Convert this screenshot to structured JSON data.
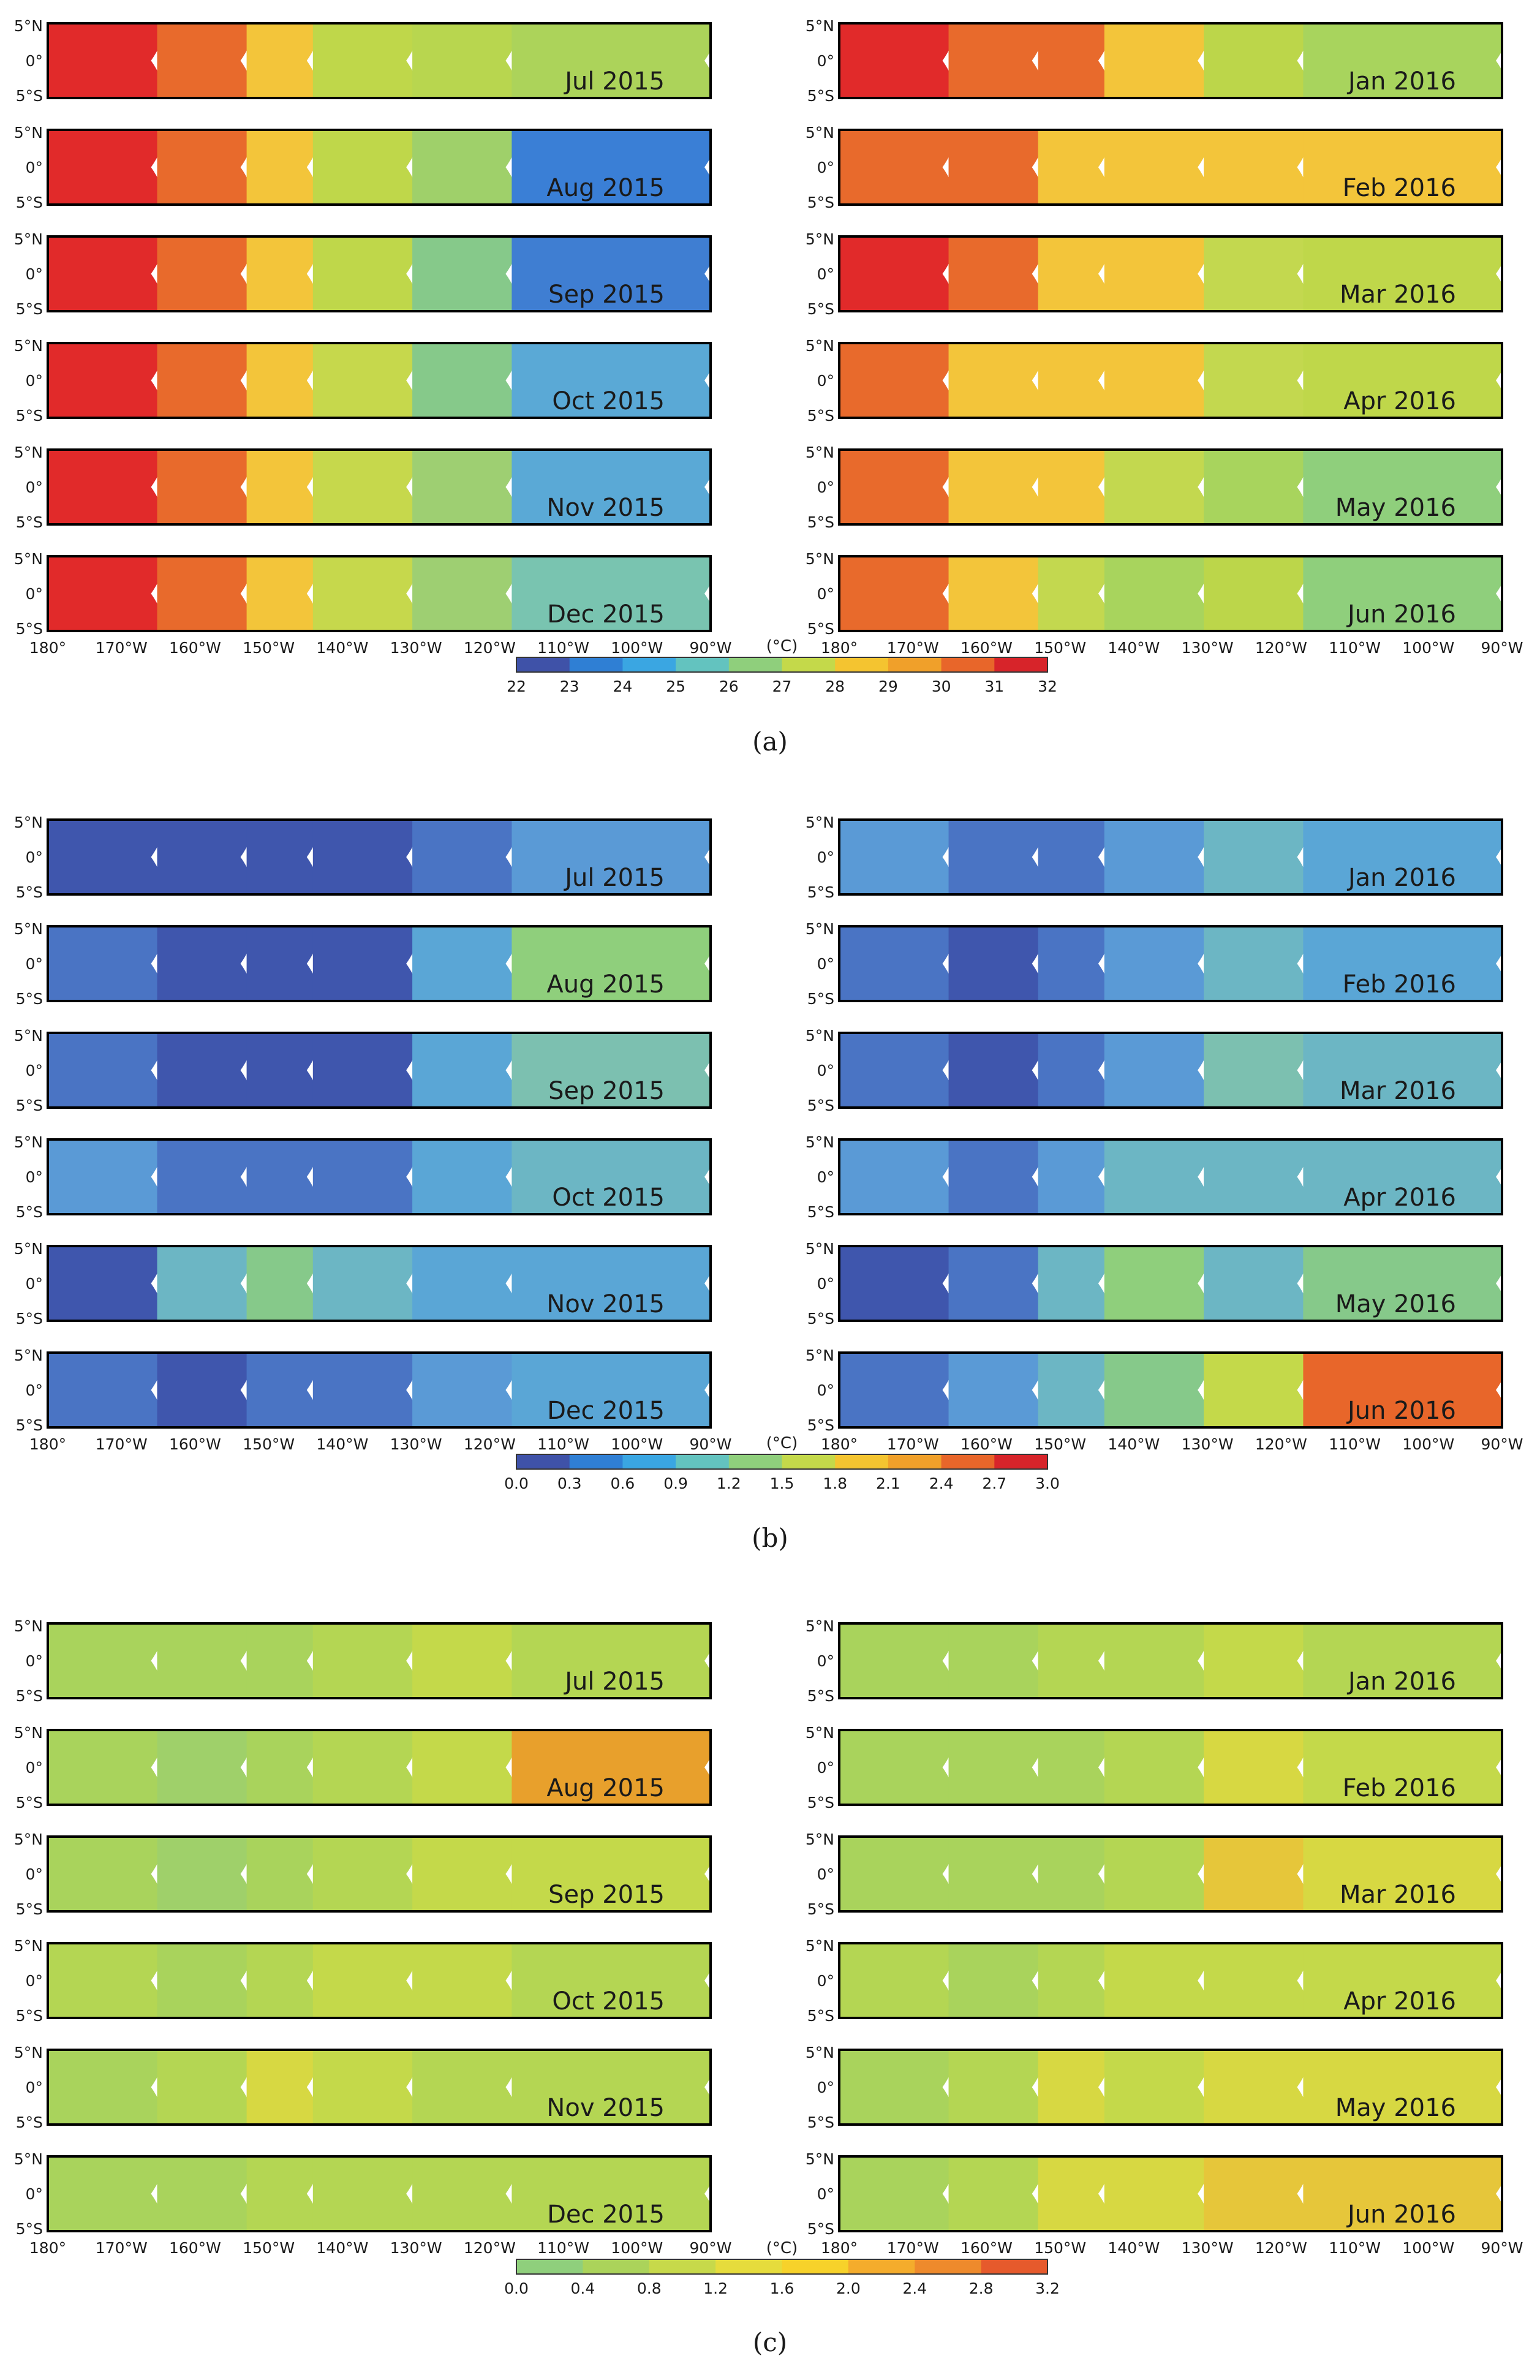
{
  "lat_ticks": [
    "5°N",
    "0°",
    "5°S"
  ],
  "lon_ticks": [
    "180°",
    "170°W",
    "160°W",
    "150°W",
    "140°W",
    "130°W",
    "120°W",
    "110°W",
    "100°W",
    "90°W"
  ],
  "months_left": [
    "Jul 2015",
    "Aug 2015",
    "Sep 2015",
    "Oct 2015",
    "Nov 2015",
    "Dec 2015"
  ],
  "months_right": [
    "Jan 2016",
    "Feb 2016",
    "Mar 2016",
    "Apr 2016",
    "May 2016",
    "Jun 2016"
  ],
  "unit_label": "(°C)",
  "chart_data": [
    {
      "type": "heatmap",
      "caption": "(a)",
      "colorbar": {
        "ticks": [
          "22",
          "23",
          "24",
          "25",
          "26",
          "27",
          "28",
          "29",
          "30",
          "31",
          "32"
        ],
        "colors": [
          "#3f52a8",
          "#2f7fd4",
          "#3aa6e2",
          "#63c3bf",
          "#8fcf7c",
          "#c4d94a",
          "#f4c430",
          "#f0a02a",
          "#e8662a",
          "#d7242a",
          "#8c1414"
        ]
      },
      "bands": [
        [
          "#e12a2a",
          "#e86a2c",
          "#f3c53a",
          "#bfd74a",
          "#b8d64f",
          "#acd35a"
        ],
        [
          "#e12a2a",
          "#e86a2c",
          "#f3c53a",
          "#bfd74a",
          "#9fd06a",
          "#3a7fd6"
        ],
        [
          "#e12a2a",
          "#e86a2c",
          "#f3c53a",
          "#bfd74a",
          "#86c98a",
          "#3f7ed2"
        ],
        [
          "#e12a2a",
          "#e86a2c",
          "#f3c53a",
          "#c6d84c",
          "#86c98a",
          "#5aa9d6"
        ],
        [
          "#e12a2a",
          "#e86a2c",
          "#f3c53a",
          "#c6d84c",
          "#9ecf72",
          "#5aa9d6"
        ],
        [
          "#e12a2a",
          "#e86a2c",
          "#f3c53a",
          "#c6d84c",
          "#9ecf72",
          "#79c4b0"
        ],
        [
          "#e12a2a",
          "#e86a2c",
          "#e86a2c",
          "#f3c53a",
          "#bcd64a",
          "#a8d45d"
        ],
        [
          "#e86a2c",
          "#e86a2c",
          "#f3c53a",
          "#f3c53a",
          "#f3c53a",
          "#f3c53a"
        ],
        [
          "#e12a2a",
          "#e86a2c",
          "#f3c53a",
          "#f3c53a",
          "#c3d84f",
          "#bfd74a"
        ],
        [
          "#e86a2c",
          "#f3c53a",
          "#f3c53a",
          "#f3c53a",
          "#c3d84f",
          "#bfd74a"
        ],
        [
          "#e86a2c",
          "#f3c53a",
          "#f3c53a",
          "#c3d84f",
          "#a8d45d",
          "#8fcf7c"
        ],
        [
          "#e86a2c",
          "#f3c53a",
          "#c3d84f",
          "#a8d45d",
          "#bcd64a",
          "#8fcf7c"
        ]
      ]
    },
    {
      "type": "heatmap",
      "caption": "(b)",
      "colorbar": {
        "ticks": [
          "0.0",
          "0.3",
          "0.6",
          "0.9",
          "1.2",
          "1.5",
          "1.8",
          "2.1",
          "2.4",
          "2.7",
          "3.0"
        ],
        "colors": [
          "#3f52a8",
          "#2f7fd4",
          "#3aa6e2",
          "#63c3bf",
          "#8fcf7c",
          "#c4d94a",
          "#f4c430",
          "#f0a02a",
          "#e8662a",
          "#d7242a",
          "#8c1414"
        ]
      },
      "bands": [
        [
          "#3f56ad",
          "#3f56ad",
          "#3f56ad",
          "#3f56ad",
          "#4a74c4",
          "#5a9ad6"
        ],
        [
          "#4a74c4",
          "#3f56ad",
          "#3f56ad",
          "#3f56ad",
          "#5aa6d6",
          "#8fcf7c"
        ],
        [
          "#4a74c4",
          "#3f56ad",
          "#3f56ad",
          "#3f56ad",
          "#5aa6d6",
          "#7cc0b0"
        ],
        [
          "#5a9ad6",
          "#4a74c4",
          "#4a74c4",
          "#4a74c4",
          "#5aa6d6",
          "#6cb6c4"
        ],
        [
          "#3f56ad",
          "#6cb6c4",
          "#86c98a",
          "#6cb6c4",
          "#5aa6d6",
          "#5aa6d6"
        ],
        [
          "#4a74c4",
          "#3f56ad",
          "#4a74c4",
          "#4a74c4",
          "#5a9ad6",
          "#5aa6d6"
        ],
        [
          "#5a9ad6",
          "#4a74c4",
          "#4a74c4",
          "#5a9ad6",
          "#6cb6c4",
          "#5aa6d6"
        ],
        [
          "#4a74c4",
          "#3f56ad",
          "#4a74c4",
          "#5a9ad6",
          "#6cb6c4",
          "#5aa6d6"
        ],
        [
          "#4a74c4",
          "#3f56ad",
          "#4a74c4",
          "#5a9ad6",
          "#7cc0b0",
          "#6cb6c4"
        ],
        [
          "#5a9ad6",
          "#4a74c4",
          "#5a9ad6",
          "#6cb6c4",
          "#6cb6c4",
          "#6cb6c4"
        ],
        [
          "#3f56ad",
          "#4a74c4",
          "#6cb6c4",
          "#8fcf7c",
          "#6cb6c4",
          "#86c98a"
        ],
        [
          "#4a74c4",
          "#5a9ad6",
          "#6cb6c4",
          "#86c98a",
          "#c4d94a",
          "#e8662a"
        ]
      ]
    },
    {
      "type": "heatmap",
      "caption": "(c)",
      "colorbar": {
        "ticks": [
          "0.0",
          "0.4",
          "0.8",
          "1.2",
          "1.6",
          "2.0",
          "2.4",
          "2.8",
          "3.2"
        ],
        "colors": [
          "#8fcf7c",
          "#abd35a",
          "#c7d94a",
          "#e6dc3c",
          "#f7d22a",
          "#f4ac2c",
          "#ee8a2c",
          "#e65a2c",
          "#d7242a"
        ]
      },
      "bands": [
        [
          "#a9d35c",
          "#a9d35c",
          "#a9d35c",
          "#b4d653",
          "#c4d94a",
          "#b4d653"
        ],
        [
          "#a9d35c",
          "#9fd06a",
          "#a9d35c",
          "#b4d653",
          "#c4d94a",
          "#e8a02c"
        ],
        [
          "#a9d35c",
          "#9fd06a",
          "#a9d35c",
          "#b4d653",
          "#c4d94a",
          "#c4d94a"
        ],
        [
          "#b4d653",
          "#a9d35c",
          "#b4d653",
          "#c4d94a",
          "#c4d94a",
          "#b4d653"
        ],
        [
          "#a9d35c",
          "#b4d653",
          "#d7d842",
          "#c4d94a",
          "#b4d653",
          "#b4d653"
        ],
        [
          "#a9d35c",
          "#a9d35c",
          "#b4d653",
          "#b4d653",
          "#b4d653",
          "#b4d653"
        ],
        [
          "#a9d35c",
          "#a9d35c",
          "#b4d653",
          "#b4d653",
          "#c4d94a",
          "#b4d653"
        ],
        [
          "#a9d35c",
          "#a9d35c",
          "#a9d35c",
          "#b4d653",
          "#d7d842",
          "#c4d94a"
        ],
        [
          "#a9d35c",
          "#a9d35c",
          "#a9d35c",
          "#b4d653",
          "#e6c63a",
          "#d7d842"
        ],
        [
          "#b4d653",
          "#a9d35c",
          "#b4d653",
          "#c4d94a",
          "#c4d94a",
          "#c4d94a"
        ],
        [
          "#a9d35c",
          "#b4d653",
          "#d7d842",
          "#c4d94a",
          "#d7d842",
          "#d7d842"
        ],
        [
          "#a9d35c",
          "#b4d653",
          "#d7d842",
          "#d7d842",
          "#e6c63a",
          "#e6c63a"
        ]
      ]
    }
  ]
}
